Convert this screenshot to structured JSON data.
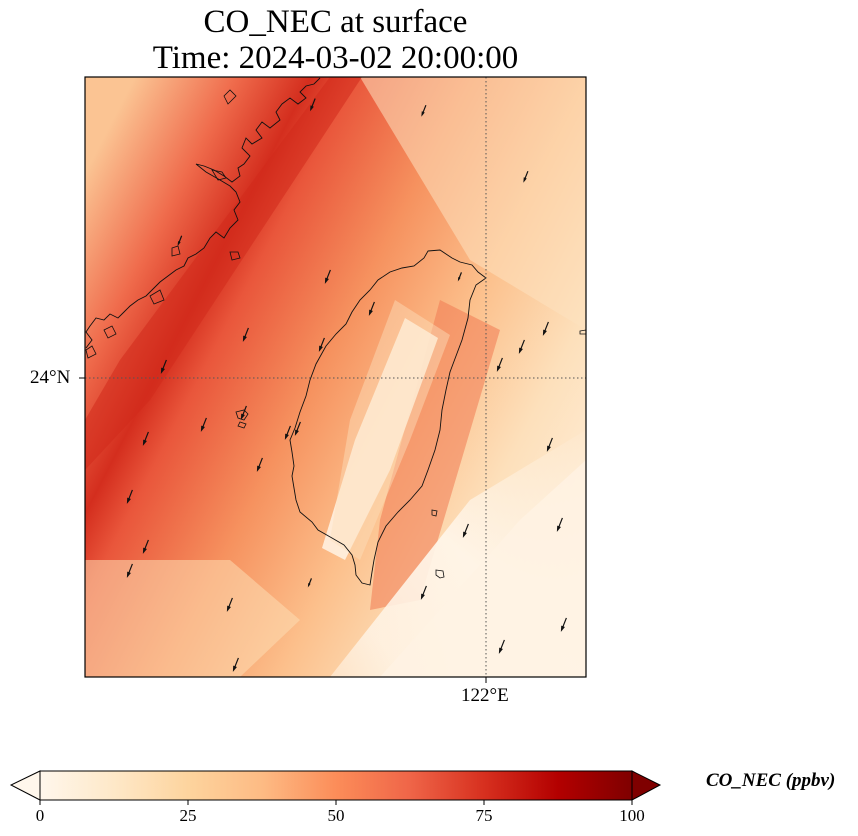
{
  "title": {
    "line1": "CO_NEC at surface",
    "line2": "Time: 2024-03-02 20:00:00"
  },
  "map": {
    "variable": "CO_NEC",
    "level": "surface",
    "time": "2024-03-02 20:00:00",
    "gridlines": {
      "latitude": [
        {
          "value": 24,
          "label": "24°N"
        }
      ],
      "longitude": [
        {
          "value": 122,
          "label": "122°E"
        }
      ]
    },
    "features": [
      "coastline",
      "wind-vectors"
    ],
    "wind_direction": "northeasterly (arrows pointing southwest)"
  },
  "colorbar": {
    "label": "CO_NEC (ppbv)",
    "colormap": "OrRd",
    "range": [
      0,
      100
    ],
    "extend": "both",
    "ticks": [
      {
        "value": 0,
        "label": "0"
      },
      {
        "value": 25,
        "label": "25"
      },
      {
        "value": 50,
        "label": "50"
      },
      {
        "value": 75,
        "label": "75"
      },
      {
        "value": 100,
        "label": "100"
      }
    ],
    "stops": [
      "#fff7ec",
      "#fee8c8",
      "#fdd49e",
      "#fdbb84",
      "#fc8d59",
      "#ef6548",
      "#d7301f",
      "#b30000",
      "#7f0000"
    ]
  }
}
